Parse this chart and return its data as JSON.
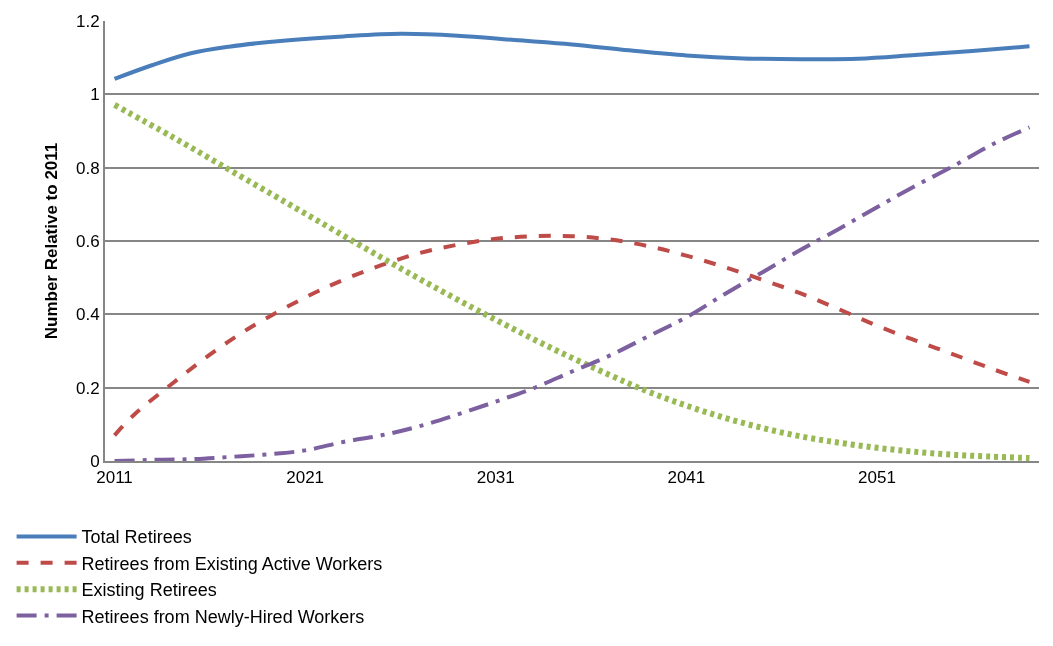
{
  "chart_data": {
    "type": "line",
    "ylabel": "Number Relative to 2011",
    "xlim": [
      2010.5,
      2059.5
    ],
    "xticks": [
      2011,
      2021,
      2031,
      2041,
      2051
    ],
    "ylim": [
      0,
      1.2
    ],
    "yticks": [
      0,
      0.2,
      0.4,
      0.6,
      0.8,
      1,
      1.2
    ],
    "grid": "y",
    "legend": "bottom",
    "marker": "none",
    "series": [
      {
        "name": "Total Retirees",
        "color": "#4a7ebb",
        "line_style": "solid",
        "x": [
          2011,
          2013,
          2015,
          2017,
          2020,
          2023,
          2026,
          2029,
          2032,
          2035,
          2038,
          2041,
          2044,
          2047,
          2050,
          2053,
          2056,
          2059
        ],
        "values": [
          1.042,
          1.08,
          1.112,
          1.13,
          1.147,
          1.158,
          1.165,
          1.16,
          1.148,
          1.136,
          1.12,
          1.106,
          1.098,
          1.096,
          1.097,
          1.107,
          1.118,
          1.131
        ]
      },
      {
        "name": "Retirees from Existing Active Workers",
        "color": "#be4b48",
        "line_style": "dashed",
        "x": [
          2011,
          2012,
          2014,
          2016,
          2018,
          2021,
          2023,
          2025,
          2027,
          2029,
          2031,
          2033,
          2035,
          2037,
          2039,
          2041,
          2043,
          2045,
          2047,
          2049,
          2051,
          2053,
          2055,
          2057,
          2059
        ],
        "values": [
          0.07,
          0.125,
          0.21,
          0.29,
          0.36,
          0.446,
          0.494,
          0.534,
          0.567,
          0.59,
          0.606,
          0.613,
          0.613,
          0.604,
          0.586,
          0.56,
          0.529,
          0.494,
          0.457,
          0.414,
          0.369,
          0.329,
          0.291,
          0.252,
          0.216
        ]
      },
      {
        "name": "Existing Retirees",
        "color": "#98b954",
        "line_style": "dotted",
        "x": [
          2011,
          2014,
          2017,
          2020,
          2022,
          2025,
          2028,
          2031,
          2034,
          2037,
          2039,
          2041,
          2043,
          2045,
          2047,
          2049,
          2051,
          2053,
          2055,
          2057,
          2059
        ],
        "values": [
          0.971,
          0.885,
          0.795,
          0.705,
          0.645,
          0.555,
          0.468,
          0.385,
          0.306,
          0.234,
          0.189,
          0.151,
          0.118,
          0.09,
          0.067,
          0.05,
          0.036,
          0.025,
          0.017,
          0.012,
          0.008
        ]
      },
      {
        "name": "Retirees from Newly-Hired Workers",
        "color": "#7d60a0",
        "line_style": "dashdot",
        "x": [
          2011,
          2013,
          2015,
          2017,
          2019,
          2021,
          2023,
          2025,
          2027,
          2029,
          2031,
          2033,
          2035,
          2037,
          2039,
          2041,
          2043,
          2045,
          2047,
          2049,
          2051,
          2053,
          2055,
          2057,
          2059
        ],
        "values": [
          0,
          0.003,
          0.005,
          0.011,
          0.018,
          0.029,
          0.052,
          0.07,
          0.095,
          0.127,
          0.162,
          0.199,
          0.244,
          0.288,
          0.34,
          0.392,
          0.455,
          0.515,
          0.576,
          0.633,
          0.692,
          0.75,
          0.804,
          0.862,
          0.91
        ]
      }
    ]
  }
}
